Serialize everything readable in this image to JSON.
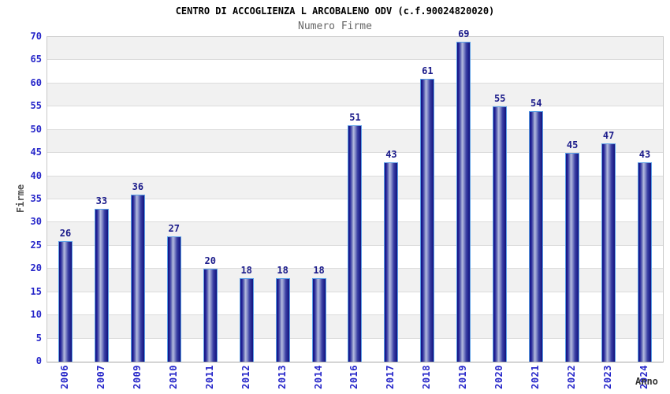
{
  "chart_data": {
    "type": "bar",
    "title": "CENTRO DI ACCOGLIENZA L ARCOBALENO ODV (c.f.90024820020)",
    "subtitle": "Numero Firme",
    "xlabel": "Anno",
    "ylabel": "Firme",
    "categories": [
      "2006",
      "2007",
      "2009",
      "2010",
      "2011",
      "2012",
      "2013",
      "2014",
      "2016",
      "2017",
      "2018",
      "2019",
      "2020",
      "2021",
      "2022",
      "2023",
      "2024"
    ],
    "values": [
      26,
      33,
      36,
      27,
      20,
      18,
      18,
      18,
      51,
      43,
      61,
      69,
      55,
      54,
      45,
      47,
      43
    ],
    "ylim": [
      0,
      70
    ],
    "ytick_step": 5,
    "yticks": [
      0,
      5,
      10,
      15,
      20,
      25,
      30,
      35,
      40,
      45,
      50,
      55,
      60,
      65,
      70
    ],
    "grid": "horizontal-bands-alternating",
    "legend": "none"
  },
  "colors": {
    "bar_edge": "#12127e",
    "bar_highlight": "#b4bade",
    "bar_border": "#5b9fe6",
    "value_label": "#1b1b8a",
    "tick_label": "#2626c9",
    "axis_title": "#555555",
    "title_text": "#000000",
    "subtitle_text": "#666666",
    "band_gray": "#f1f1f1",
    "band_white": "#ffffff",
    "gridline": "#dcdcdc",
    "plot_border": "#c9c9c9"
  }
}
